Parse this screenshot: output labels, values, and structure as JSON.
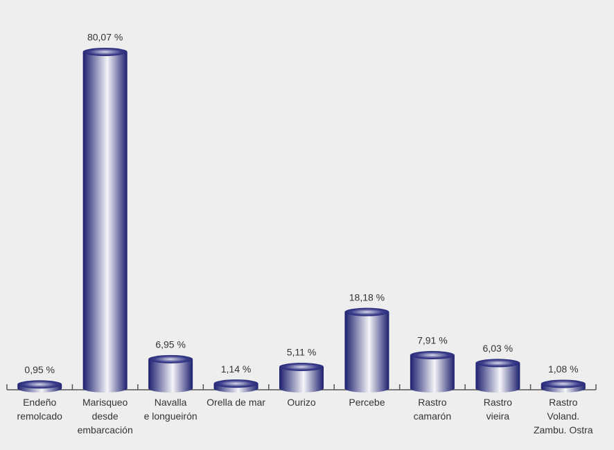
{
  "chart_data": {
    "type": "bar",
    "categories": [
      "Endeño\nremolcado",
      "Marisqueo\ndesde\nembarcación",
      "Navalla\ne longueirón",
      "Orella de mar",
      "Ourizo",
      "Percebe",
      "Rastro\ncamarón",
      "Rastro\nvieira",
      "Rastro\nVoland.\nZambu. Ostra"
    ],
    "values": [
      0.95,
      80.07,
      6.95,
      1.14,
      5.11,
      18.18,
      7.91,
      6.03,
      1.08
    ],
    "value_labels": [
      "0,95 %",
      "80,07 %",
      "6,95 %",
      "1,14 %",
      "5,11 %",
      "18,18 %",
      "7,91 %",
      "6,03 %",
      "1,08 %"
    ],
    "color": "#1c1f6e"
  }
}
